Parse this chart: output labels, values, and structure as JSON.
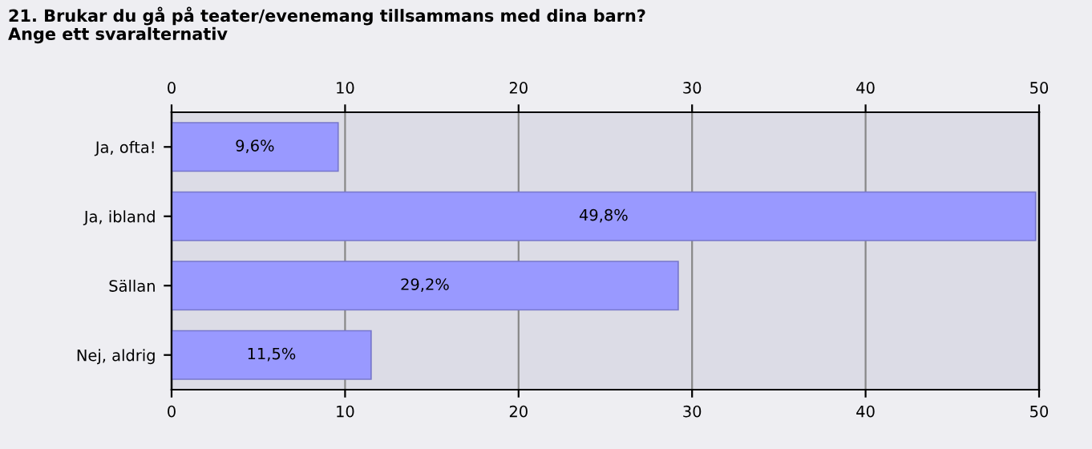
{
  "chart_data": {
    "type": "bar",
    "orientation": "horizontal",
    "title": "21. Brukar du gå på teater/evenemang tillsammans med dina barn?",
    "subtitle": "Ange ett svaralternativ",
    "categories": [
      "Ja, ofta!",
      "Ja, ibland",
      "Sällan",
      "Nej, aldrig"
    ],
    "values": [
      9.6,
      49.8,
      29.2,
      11.5
    ],
    "value_labels": [
      "9,6%",
      "49,8%",
      "29,2%",
      "11,5%"
    ],
    "color": "#9999ff",
    "xlim": [
      0,
      50
    ],
    "xticks": [
      0,
      10,
      20,
      30,
      40,
      50
    ],
    "x2lim": [
      0,
      50
    ],
    "x2ticks": [
      0,
      10,
      20,
      30,
      40,
      50
    ],
    "grid": "x"
  }
}
